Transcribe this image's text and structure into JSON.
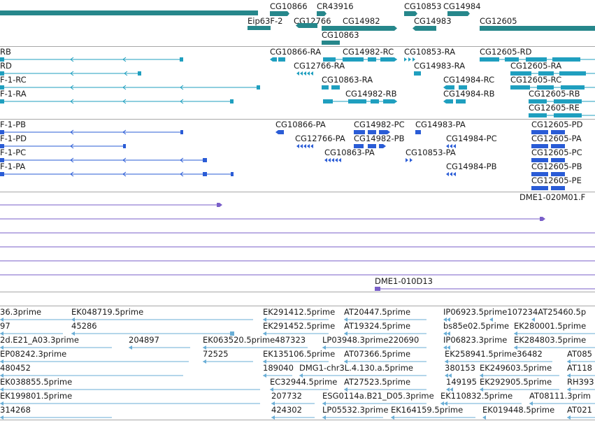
{
  "colors": {
    "gene": "#26878b",
    "transcript": "#1f9fbf",
    "protein": "#2a5cd6",
    "cdna": "#7a5fc9",
    "est": "#6aaed6",
    "divider": "#a8a8a8"
  },
  "tracks": {
    "genes": [
      "CG10866",
      "CR43916",
      "CG10853",
      "CG14984",
      "Eip63F-2",
      "CG12766",
      "CG14982",
      "CG14983",
      "CG12605",
      "CG10863"
    ],
    "transcripts": [
      "RB",
      "RD",
      "F-1-RC",
      "F-1-RA",
      "CG10866-RA",
      "CG14982-RC",
      "CG10853-RA",
      "CG12605-RD",
      "CG12766-RA",
      "CG14983-RA",
      "CG12605-RA",
      "CG10863-RA",
      "CG14984-RC",
      "CG12605-RC",
      "CG14982-RB",
      "CG14984-RB",
      "CG12605-RB",
      "CG12605-RE"
    ],
    "proteins": [
      "F-1-PB",
      "F-1-PD",
      "F-1-PC",
      "F-1-PA",
      "CG10866-PA",
      "CG14982-PC",
      "CG14983-PA",
      "CG12605-PD",
      "CG12766-PA",
      "CG14982-PB",
      "CG14984-PC",
      "CG12605-PA",
      "CG10863-PA",
      "CG10853-PA",
      "CG12605-PC",
      "CG14984-PB",
      "CG12605-PB",
      "CG12605-PE"
    ],
    "cdna": [
      "DME1-020M01.F",
      "DME1-010D13"
    ],
    "est": [
      "36.3prime",
      "EK048719.5prime",
      "EK291412.5prime",
      "AT20447.5prime",
      "IP06923.5prime107234AT25460.5p",
      "97",
      "45286",
      "EK291452.5prime",
      "AT19324.5prime",
      "bs85e02.5prime",
      "EK280001.5prime",
      "2d.E21_A03.3prime",
      "204897",
      "EK063520.5prime487323",
      "LP03948.3prime220690",
      "IP06823.3prime",
      "EK284803.5prime",
      "EP08242.3prime",
      "72525",
      "EK135106.5prime",
      "AT07366.5prime",
      "EK258941.5prime36482",
      "AT085",
      "480452",
      "189040",
      "DMG1-chr3L.4.130.a.5prime",
      "380153",
      "EK249603.5prime",
      "AT118",
      "EK038855.5prime",
      "EC32944.5prime",
      "AT27523.5prime",
      "149195",
      "EK292905.5prime",
      "RH393",
      "EK199801.5prime",
      "207732",
      "ESG0114a.B21_D05.3prime",
      "EK110832.5prime",
      "AT08111.3prim",
      "314268",
      "424302",
      "LP05532.3prime",
      "EK164159.5prime",
      "EK019448.5prime",
      "AT021"
    ]
  }
}
